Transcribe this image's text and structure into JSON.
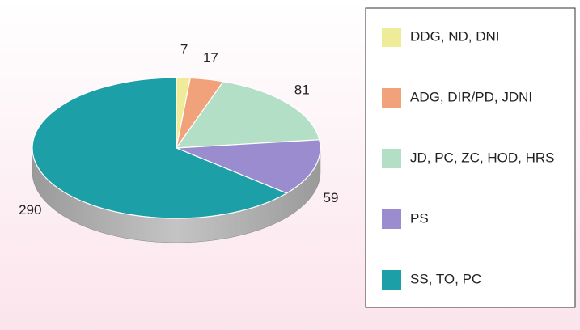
{
  "chart_data": {
    "type": "pie",
    "categories": [
      "DDG, ND, DNI",
      "ADG, DIR/PD, JDNI",
      "JD, PC, ZC, HOD, HRS",
      "PS",
      "SS, TO, PC"
    ],
    "values": [
      7,
      17,
      81,
      59,
      290
    ],
    "colors": [
      "#eeec98",
      "#f2a27a",
      "#b3dfc6",
      "#9a8ccf",
      "#1c9fa6"
    ],
    "legend": "right"
  }
}
